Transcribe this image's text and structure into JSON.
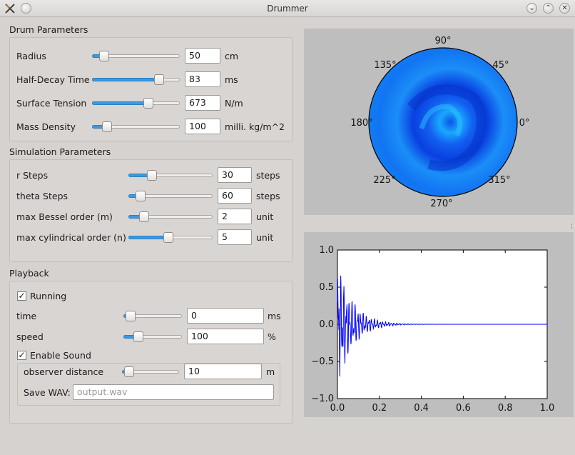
{
  "window": {
    "title": "Drummer"
  },
  "drum": {
    "title": "Drum Parameters",
    "rows": [
      {
        "label": "Radius",
        "value": "50",
        "unit": "cm",
        "slider": 0.09
      },
      {
        "label": "Half-Decay Time",
        "value": "83",
        "unit": "ms",
        "slider": 0.8
      },
      {
        "label": "Surface Tension",
        "value": "673",
        "unit": "N/m",
        "slider": 0.66
      },
      {
        "label": "Mass Density",
        "value": "100",
        "unit": "milli. kg/m^2",
        "slider": 0.13
      }
    ]
  },
  "sim": {
    "title": "Simulation Parameters",
    "rows": [
      {
        "label": "r Steps",
        "value": "30",
        "unit": "steps",
        "slider": 0.25
      },
      {
        "label": "theta Steps",
        "value": "60",
        "unit": "steps",
        "slider": 0.1
      },
      {
        "label": "max Bessel order (m)",
        "value": "2",
        "unit": "unit",
        "slider": 0.14
      },
      {
        "label": "max cylindrical order (n)",
        "value": "5",
        "unit": "unit",
        "slider": 0.47
      }
    ]
  },
  "playback": {
    "title": "Playback",
    "running_label": "Running",
    "running_checked": "✓",
    "rows": [
      {
        "label": "time",
        "value": "0",
        "unit": "ms",
        "slider": 0.05
      },
      {
        "label": "speed",
        "value": "100",
        "unit": "%",
        "slider": 0.2
      }
    ],
    "sound_label": "Enable Sound",
    "sound_checked": "✓",
    "observer": {
      "label": "observer distance",
      "value": "10",
      "unit": "m",
      "slider": 0.05
    },
    "save": {
      "label": "Save WAV:",
      "placeholder": "output.wav"
    }
  },
  "polar": {
    "angle_labels": [
      "90°",
      "45°",
      "0°",
      "315°",
      "270°",
      "225°",
      "180°",
      "135°"
    ]
  },
  "chart_data": {
    "type": "line",
    "title": "",
    "xlabel": "",
    "ylabel": "",
    "xlim": [
      0.0,
      1.0
    ],
    "ylim": [
      -1.0,
      1.0
    ],
    "xticks": [
      "0.0",
      "0.2",
      "0.4",
      "0.6",
      "0.8",
      "1.0"
    ],
    "yticks": [
      "1.0",
      "0.5",
      "0.0",
      "−0.5",
      "−1.0"
    ],
    "series": [
      {
        "color": "#0000ff",
        "description": "damped oscillation, amplitude decays from ~1.0 near x=0 to ~0 by x≈0.3",
        "envelope_start": 1.0,
        "envelope_decay_time": 0.07,
        "x_start": 0.0,
        "x_end": 1.0
      }
    ]
  },
  "colors": {
    "accent": "#3b9ae0",
    "plot_line": "#0000ff",
    "plot_bg": "#bebebe"
  }
}
